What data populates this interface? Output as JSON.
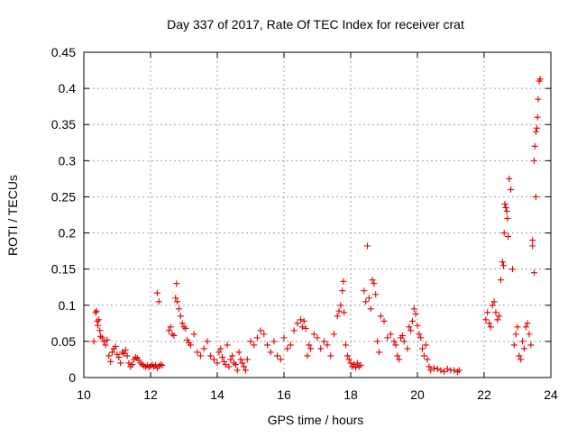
{
  "chart_data": {
    "type": "scatter",
    "title": "Day 337 of 2017, Rate Of TEC Index for receiver crat",
    "xlabel": "GPS time / hours",
    "ylabel": "ROTI / TECUs",
    "xlim": [
      10,
      24
    ],
    "ylim": [
      0,
      0.45
    ],
    "xticks": [
      10,
      12,
      14,
      16,
      18,
      20,
      22,
      24
    ],
    "yticks": [
      0,
      0.05,
      0.1,
      0.15,
      0.2,
      0.25,
      0.3,
      0.35,
      0.4,
      0.45
    ],
    "ytick_labels": [
      "0",
      "0.05",
      "0.1",
      "0.15",
      "0.2",
      "0.25",
      "0.3",
      "0.35",
      "0.4",
      "0.45"
    ],
    "grid": true,
    "marker": "+",
    "color": "#e00000",
    "series": [
      {
        "name": "ROTI",
        "x": [
          10.3,
          10.35,
          10.38,
          10.4,
          10.42,
          10.45,
          10.48,
          10.5,
          10.55,
          10.6,
          10.65,
          10.7,
          10.75,
          10.8,
          10.85,
          10.9,
          10.95,
          11.0,
          11.05,
          11.1,
          11.15,
          11.2,
          11.25,
          11.3,
          11.35,
          11.4,
          11.45,
          11.5,
          11.55,
          11.6,
          11.65,
          11.7,
          11.75,
          11.8,
          11.85,
          11.9,
          11.95,
          12.0,
          12.05,
          12.1,
          12.15,
          12.2,
          12.25,
          12.3,
          12.35,
          12.2,
          12.25,
          12.55,
          12.6,
          12.65,
          12.7,
          12.75,
          12.78,
          12.8,
          12.85,
          12.9,
          12.95,
          13.0,
          13.05,
          13.1,
          13.15,
          13.2,
          13.3,
          13.4,
          13.5,
          13.6,
          13.7,
          13.8,
          13.9,
          14.0,
          14.05,
          14.1,
          14.15,
          14.2,
          14.25,
          14.3,
          14.35,
          14.4,
          14.45,
          14.5,
          14.55,
          14.6,
          14.65,
          14.7,
          14.75,
          14.8,
          14.85,
          14.9,
          15.0,
          15.1,
          15.2,
          15.3,
          15.4,
          15.5,
          15.6,
          15.7,
          15.8,
          15.9,
          16.0,
          16.1,
          16.2,
          16.3,
          16.4,
          16.5,
          16.55,
          16.6,
          16.65,
          16.7,
          16.75,
          16.8,
          16.9,
          17.0,
          17.1,
          17.2,
          17.3,
          17.4,
          17.5,
          17.6,
          17.65,
          17.7,
          17.75,
          17.78,
          17.8,
          17.85,
          17.9,
          17.95,
          18.0,
          18.05,
          18.1,
          18.15,
          18.2,
          18.25,
          18.3,
          18.4,
          18.45,
          18.5,
          18.55,
          18.6,
          18.65,
          18.7,
          18.75,
          18.8,
          18.85,
          18.9,
          19.0,
          19.1,
          19.2,
          19.3,
          19.35,
          19.4,
          19.45,
          19.5,
          19.55,
          19.6,
          19.7,
          19.75,
          19.8,
          19.85,
          19.9,
          19.95,
          20.0,
          20.05,
          20.1,
          20.15,
          20.2,
          20.25,
          20.3,
          20.35,
          20.4,
          20.5,
          20.6,
          20.7,
          20.8,
          20.9,
          21.0,
          21.1,
          21.2,
          21.25,
          22.05,
          22.1,
          22.15,
          22.2,
          22.25,
          22.3,
          22.35,
          22.4,
          22.45,
          22.5,
          22.55,
          22.58,
          22.6,
          22.62,
          22.65,
          22.68,
          22.7,
          22.72,
          22.75,
          22.8,
          22.85,
          22.9,
          22.95,
          23.0,
          23.05,
          23.1,
          23.15,
          23.2,
          23.25,
          23.3,
          23.35,
          23.4,
          23.45,
          23.5,
          23.52,
          23.55,
          23.58,
          23.6,
          23.62,
          23.65,
          23.68,
          23.45,
          23.5,
          23.55
        ],
        "y": [
          0.05,
          0.09,
          0.092,
          0.078,
          0.072,
          0.08,
          0.065,
          0.057,
          0.055,
          0.05,
          0.045,
          0.052,
          0.03,
          0.022,
          0.035,
          0.04,
          0.043,
          0.032,
          0.028,
          0.02,
          0.035,
          0.033,
          0.038,
          0.03,
          0.02,
          0.015,
          0.018,
          0.025,
          0.028,
          0.027,
          0.024,
          0.02,
          0.018,
          0.016,
          0.015,
          0.017,
          0.014,
          0.016,
          0.018,
          0.015,
          0.017,
          0.013,
          0.016,
          0.018,
          0.017,
          0.117,
          0.105,
          0.065,
          0.07,
          0.06,
          0.058,
          0.11,
          0.13,
          0.105,
          0.095,
          0.085,
          0.075,
          0.07,
          0.068,
          0.052,
          0.048,
          0.045,
          0.06,
          0.035,
          0.03,
          0.04,
          0.05,
          0.03,
          0.025,
          0.02,
          0.035,
          0.04,
          0.028,
          0.022,
          0.018,
          0.045,
          0.015,
          0.025,
          0.03,
          0.02,
          0.018,
          0.01,
          0.035,
          0.025,
          0.02,
          0.015,
          0.01,
          0.025,
          0.05,
          0.045,
          0.055,
          0.065,
          0.06,
          0.045,
          0.035,
          0.05,
          0.03,
          0.025,
          0.055,
          0.04,
          0.045,
          0.065,
          0.075,
          0.08,
          0.07,
          0.078,
          0.068,
          0.03,
          0.045,
          0.04,
          0.06,
          0.055,
          0.04,
          0.05,
          0.045,
          0.03,
          0.06,
          0.085,
          0.092,
          0.1,
          0.12,
          0.133,
          0.09,
          0.045,
          0.03,
          0.025,
          0.02,
          0.015,
          0.018,
          0.014,
          0.02,
          0.015,
          0.017,
          0.12,
          0.105,
          0.182,
          0.11,
          0.095,
          0.135,
          0.13,
          0.115,
          0.05,
          0.035,
          0.085,
          0.078,
          0.055,
          0.06,
          0.05,
          0.045,
          0.03,
          0.025,
          0.055,
          0.058,
          0.05,
          0.04,
          0.07,
          0.065,
          0.078,
          0.095,
          0.088,
          0.072,
          0.06,
          0.055,
          0.04,
          0.03,
          0.045,
          0.025,
          0.015,
          0.01,
          0.013,
          0.012,
          0.01,
          0.008,
          0.012,
          0.01,
          0.01,
          0.008,
          0.01,
          0.08,
          0.09,
          0.075,
          0.07,
          0.1,
          0.105,
          0.09,
          0.08,
          0.085,
          0.135,
          0.16,
          0.155,
          0.2,
          0.24,
          0.235,
          0.23,
          0.22,
          0.195,
          0.275,
          0.26,
          0.15,
          0.045,
          0.06,
          0.07,
          0.03,
          0.025,
          0.05,
          0.04,
          0.07,
          0.075,
          0.06,
          0.045,
          0.19,
          0.3,
          0.32,
          0.34,
          0.345,
          0.36,
          0.385,
          0.41,
          0.413,
          0.182,
          0.145,
          0.25
        ]
      }
    ]
  }
}
